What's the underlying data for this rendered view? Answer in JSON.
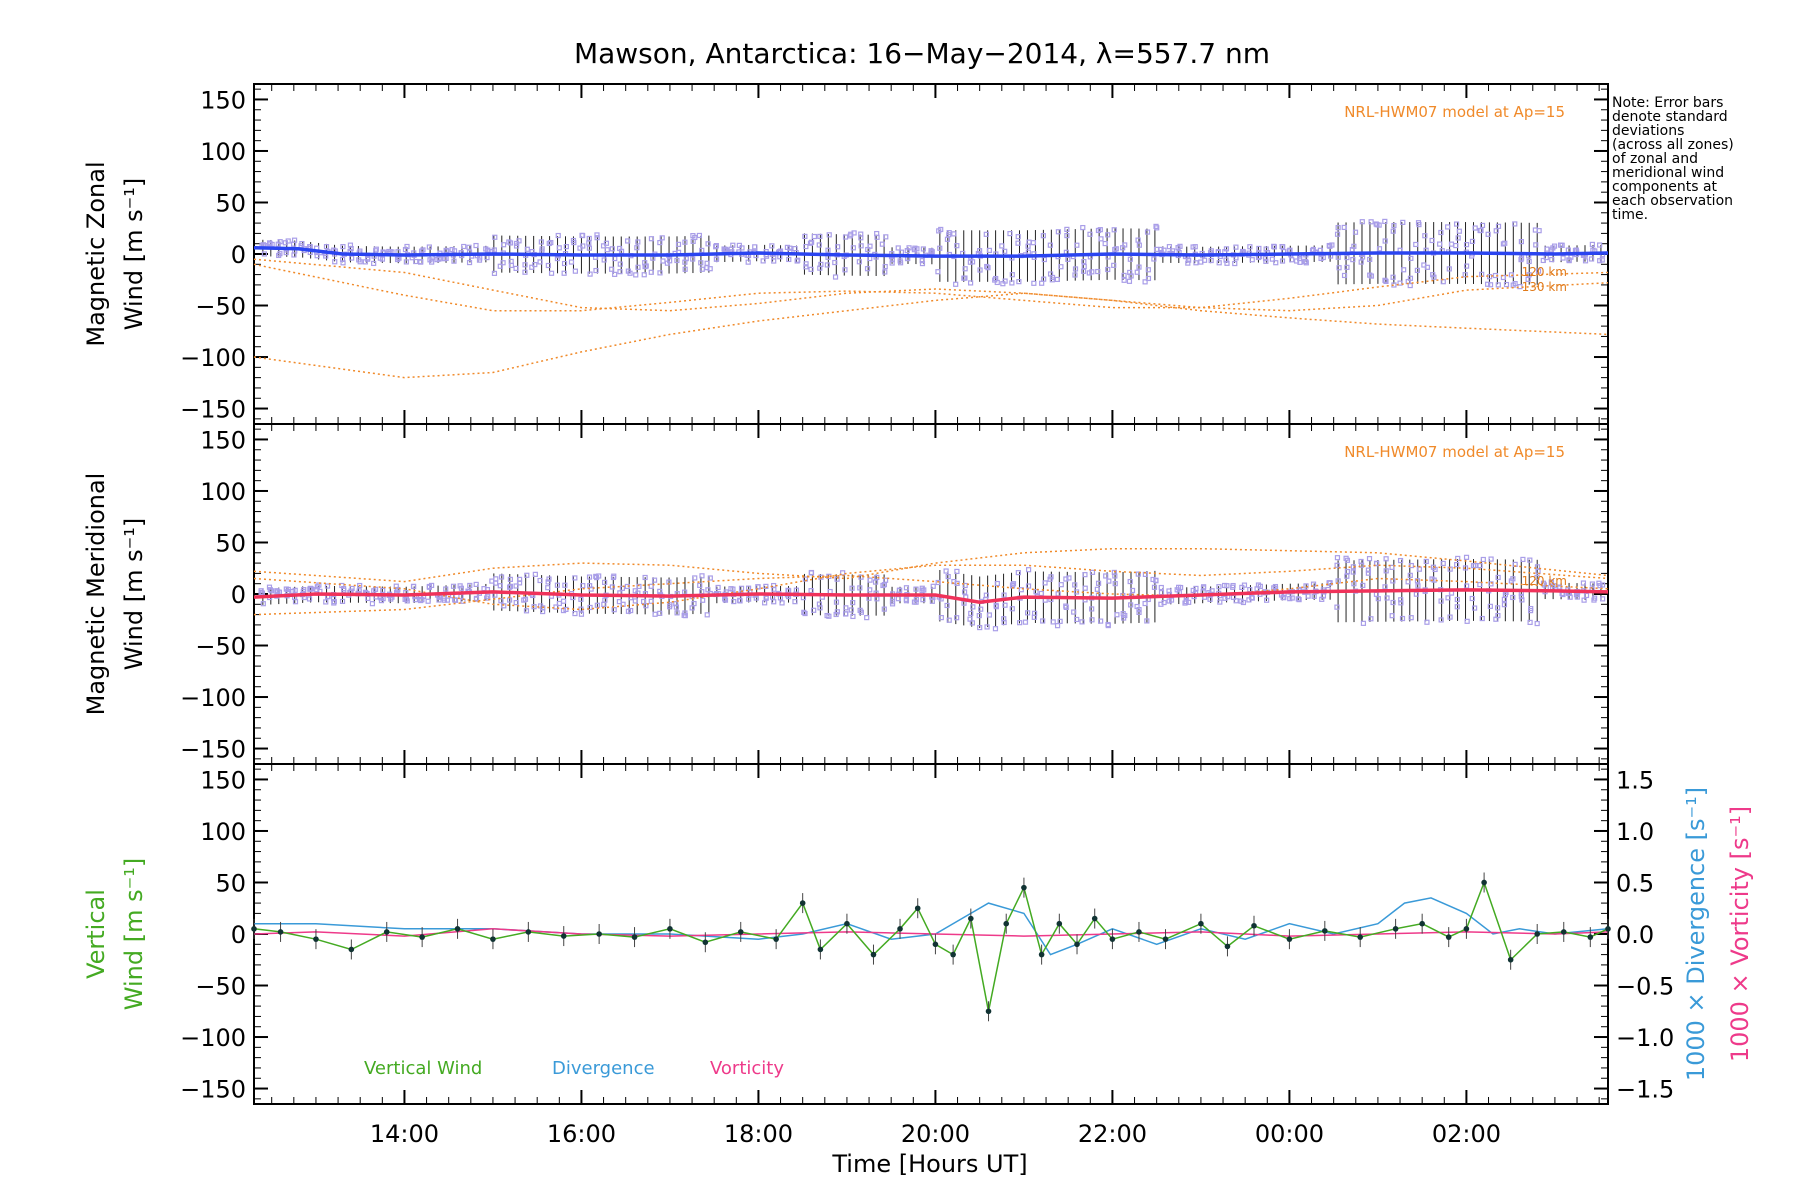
{
  "chart_data": {
    "type": "line",
    "title": "Mawson, Antarctica: 16−May−2014, λ=557.7 nm",
    "xlabel": "Time [Hours UT]",
    "x_ticks": [
      "14:00",
      "16:00",
      "18:00",
      "20:00",
      "22:00",
      "00:00",
      "02:00"
    ],
    "x_range_hours": [
      12.3,
      27.6
    ],
    "note": [
      "Note: Error bars",
      "denote standard",
      "deviations",
      "(across all zones)",
      "of zonal and",
      "meridional wind",
      "components at",
      "each observation",
      "time."
    ],
    "colors": {
      "zonal_mean": "#2a44f0",
      "meridional_mean": "#f0325a",
      "model": "#f08a2a",
      "zone_points": "#a99ee8",
      "vertical": "#44aa22",
      "divergence": "#3a9ad8",
      "vorticity": "#ee3a8a"
    },
    "panels": [
      {
        "id": "zonal",
        "ylabel_line1": "Magnetic Zonal",
        "ylabel_line2": "Wind [m s⁻¹]",
        "ylim": [
          -165,
          165
        ],
        "y_ticks": [
          150,
          100,
          50,
          0,
          -50,
          -100,
          -150
        ],
        "model_label": "NRL-HWM07 model at Ap=15",
        "model_height_labels": [
          "120 km",
          "130 km"
        ],
        "series": [
          {
            "role": "mean",
            "x": [
              12.3,
              12.8,
              13.3,
              14,
              15,
              16,
              17,
              18,
              19,
              20,
              21,
              22,
              23,
              24,
              25,
              26,
              27,
              27.6
            ],
            "values": [
              6,
              5,
              0,
              -1,
              0,
              -1,
              -1,
              1,
              -1,
              -2,
              -2,
              0,
              -1,
              0,
              1,
              1,
              0,
              1
            ]
          },
          {
            "role": "model",
            "x": [
              12.3,
              14,
              15,
              16,
              17,
              18,
              19,
              20,
              21,
              22,
              23,
              24,
              25,
              26,
              27.6
            ],
            "values": [
              -5,
              -18,
              -35,
              -52,
              -55,
              -48,
              -38,
              -34,
              -38,
              -45,
              -52,
              -55,
              -50,
              -35,
              -28
            ]
          },
          {
            "role": "model",
            "x": [
              12.3,
              14,
              15,
              16,
              17,
              18,
              19,
              20,
              21,
              22,
              23,
              24,
              25,
              26,
              27.6
            ],
            "values": [
              -10,
              -40,
              -55,
              -55,
              -47,
              -38,
              -36,
              -38,
              -45,
              -52,
              -52,
              -43,
              -32,
              -22,
              -18
            ]
          },
          {
            "role": "model",
            "x": [
              12.3,
              14,
              15,
              16,
              17,
              18,
              19,
              20,
              21,
              22,
              23,
              24,
              25,
              26,
              27.6
            ],
            "values": [
              -100,
              -120,
              -115,
              -95,
              -78,
              -65,
              -55,
              -45,
              -38,
              -45,
              -55,
              -62,
              -68,
              -72,
              -78
            ]
          }
        ]
      },
      {
        "id": "meridional",
        "ylabel_line1": "Magnetic Meridional",
        "ylabel_line2": "Wind [m s⁻¹]",
        "ylim": [
          -165,
          165
        ],
        "y_ticks": [
          150,
          100,
          50,
          0,
          -50,
          -100,
          -150
        ],
        "model_label": "NRL-HWM07 model at Ap=15",
        "model_height_labels": [
          "120 km"
        ],
        "series": [
          {
            "role": "mean",
            "x": [
              12.3,
              13,
              14,
              15,
              16,
              17,
              18,
              19,
              20,
              20.5,
              21,
              22,
              23,
              24,
              25,
              26,
              27,
              27.6
            ],
            "values": [
              -3,
              0,
              -1,
              2,
              -1,
              -2,
              0,
              -1,
              -1,
              -8,
              -3,
              -4,
              -1,
              2,
              3,
              4,
              3,
              2
            ]
          },
          {
            "role": "model",
            "x": [
              12.3,
              14,
              15,
              16,
              17,
              18,
              19,
              20,
              21,
              22,
              23,
              24,
              25,
              26,
              27.6
            ],
            "values": [
              22,
              12,
              25,
              30,
              28,
              20,
              15,
              30,
              40,
              44,
              44,
              42,
              40,
              32,
              18
            ]
          },
          {
            "role": "model",
            "x": [
              12.3,
              14,
              15,
              16,
              17,
              18,
              19,
              20,
              21,
              22,
              23,
              24,
              25,
              26,
              27.6
            ],
            "values": [
              15,
              5,
              -10,
              -15,
              -8,
              5,
              20,
              28,
              28,
              22,
              18,
              22,
              28,
              25,
              15
            ]
          },
          {
            "role": "model",
            "x": [
              12.3,
              14,
              15,
              16,
              17,
              18,
              19,
              20,
              21,
              22,
              23,
              24,
              25,
              26,
              27.6
            ],
            "values": [
              -20,
              -15,
              -5,
              5,
              10,
              15,
              18,
              12,
              5,
              0,
              -2,
              5,
              15,
              12,
              5
            ]
          }
        ]
      },
      {
        "id": "vertical",
        "ylabel_line1": "Vertical",
        "ylabel_line2": "Wind [m s⁻¹]",
        "ylim": [
          -165,
          165
        ],
        "y_ticks": [
          150,
          100,
          50,
          0,
          -50,
          -100,
          -150
        ],
        "y2_label_div": "1000 × Divergence [s⁻¹]",
        "y2_label_vort": "1000 × Vorticity [s⁻¹]",
        "y2_ticks": [
          "1.5",
          "1.0",
          "0.5",
          "0.0",
          "−0.5",
          "−1.0",
          "−1.5"
        ],
        "y2_lim": [
          -1.65,
          1.65
        ],
        "legend": [
          "Vertical Wind",
          "Divergence",
          "Vorticity"
        ],
        "series": [
          {
            "name": "Vertical Wind",
            "x": [
              12.3,
              12.6,
              13,
              13.4,
              13.8,
              14.2,
              14.6,
              15,
              15.4,
              15.8,
              16.2,
              16.6,
              17,
              17.4,
              17.8,
              18.2,
              18.5,
              18.7,
              19,
              19.3,
              19.6,
              19.8,
              20,
              20.2,
              20.4,
              20.6,
              20.8,
              21,
              21.2,
              21.4,
              21.6,
              21.8,
              22,
              22.3,
              22.6,
              23,
              23.3,
              23.6,
              24,
              24.4,
              24.8,
              25.2,
              25.5,
              25.8,
              26,
              26.2,
              26.5,
              26.8,
              27.1,
              27.4,
              27.6
            ],
            "values": [
              5,
              2,
              -5,
              -15,
              2,
              -3,
              5,
              -5,
              2,
              -2,
              0,
              -3,
              5,
              -8,
              2,
              -5,
              30,
              -15,
              10,
              -20,
              5,
              25,
              -10,
              -20,
              15,
              -75,
              10,
              45,
              -20,
              10,
              -10,
              15,
              -5,
              2,
              -5,
              10,
              -12,
              8,
              -5,
              3,
              -3,
              5,
              10,
              -3,
              5,
              50,
              -25,
              0,
              2,
              -3,
              5
            ]
          },
          {
            "name": "Divergence",
            "x": [
              12.3,
              13,
              14,
              15,
              16,
              17,
              18,
              18.5,
              19,
              19.5,
              20,
              20.3,
              20.6,
              21,
              21.3,
              21.6,
              22,
              22.5,
              23,
              23.5,
              24,
              24.5,
              25,
              25.3,
              25.6,
              26,
              26.3,
              26.6,
              27,
              27.6
            ],
            "values": [
              0.1,
              0.1,
              0.05,
              0.05,
              0.0,
              0.0,
              -0.05,
              0.0,
              0.1,
              -0.05,
              0.0,
              0.15,
              0.3,
              0.2,
              -0.2,
              -0.1,
              0.05,
              -0.1,
              0.05,
              -0.05,
              0.1,
              0.0,
              0.1,
              0.3,
              0.35,
              0.2,
              0.0,
              0.05,
              0.0,
              0.05
            ]
          },
          {
            "name": "Vorticity",
            "x": [
              12.3,
              13,
              14,
              15,
              16,
              17,
              18,
              19,
              20,
              21,
              22,
              23,
              24,
              25,
              26,
              27,
              27.6
            ],
            "values": [
              0.0,
              0.02,
              -0.02,
              0.05,
              0.0,
              -0.02,
              0.0,
              0.02,
              0.0,
              -0.02,
              0.0,
              0.02,
              -0.02,
              0.0,
              0.02,
              0.0,
              0.02
            ]
          }
        ]
      }
    ]
  }
}
